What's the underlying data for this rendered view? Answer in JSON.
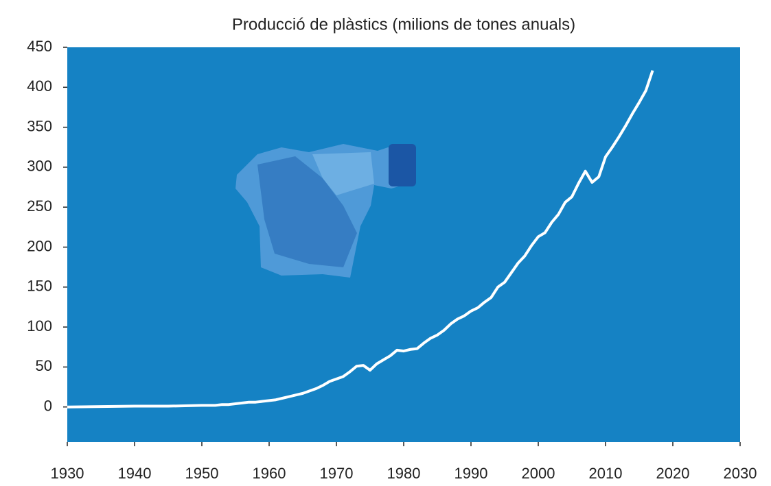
{
  "chart_data": {
    "type": "line",
    "title": "Producció de plàstics (milions de tones anuals)",
    "x": [
      1930,
      1935,
      1940,
      1945,
      1950,
      1951,
      1952,
      1953,
      1954,
      1955,
      1956,
      1957,
      1958,
      1959,
      1960,
      1961,
      1962,
      1963,
      1964,
      1965,
      1966,
      1967,
      1968,
      1969,
      1970,
      1971,
      1972,
      1973,
      1974,
      1975,
      1976,
      1977,
      1978,
      1979,
      1980,
      1981,
      1982,
      1983,
      1984,
      1985,
      1986,
      1987,
      1988,
      1989,
      1990,
      1991,
      1992,
      1993,
      1994,
      1995,
      1996,
      1997,
      1998,
      1999,
      2000,
      2001,
      2002,
      2003,
      2004,
      2005,
      2006,
      2007,
      2008,
      2009,
      2010,
      2011,
      2012,
      2013,
      2014,
      2015,
      2016,
      2017
    ],
    "series": [
      {
        "color": "#ffffff",
        "values": [
          0,
          0.5,
          1,
          1,
          2,
          2,
          2,
          3,
          3,
          4,
          5,
          6,
          6,
          7,
          8,
          9,
          11,
          13,
          15,
          17,
          20,
          23,
          27,
          32,
          35,
          38,
          44,
          51,
          52,
          46,
          54,
          59,
          64,
          71,
          70,
          72,
          73,
          80,
          86,
          90,
          96,
          104,
          110,
          114,
          120,
          124,
          131,
          137,
          150,
          156,
          168,
          180,
          189,
          202,
          213,
          218,
          231,
          241,
          256,
          263,
          280,
          295,
          281,
          288,
          313,
          325,
          338,
          352,
          367,
          381,
          396,
          421
        ]
      }
    ],
    "xlim": [
      1930,
      2030
    ],
    "xticks": [
      1930,
      1940,
      1950,
      1960,
      1970,
      1980,
      1990,
      2000,
      2010,
      2020,
      2030
    ],
    "ylim": [
      -44,
      450
    ],
    "yticks": [
      0,
      50,
      100,
      150,
      200,
      250,
      300,
      350,
      400,
      450
    ],
    "background": "#1582c4",
    "grid": false
  }
}
